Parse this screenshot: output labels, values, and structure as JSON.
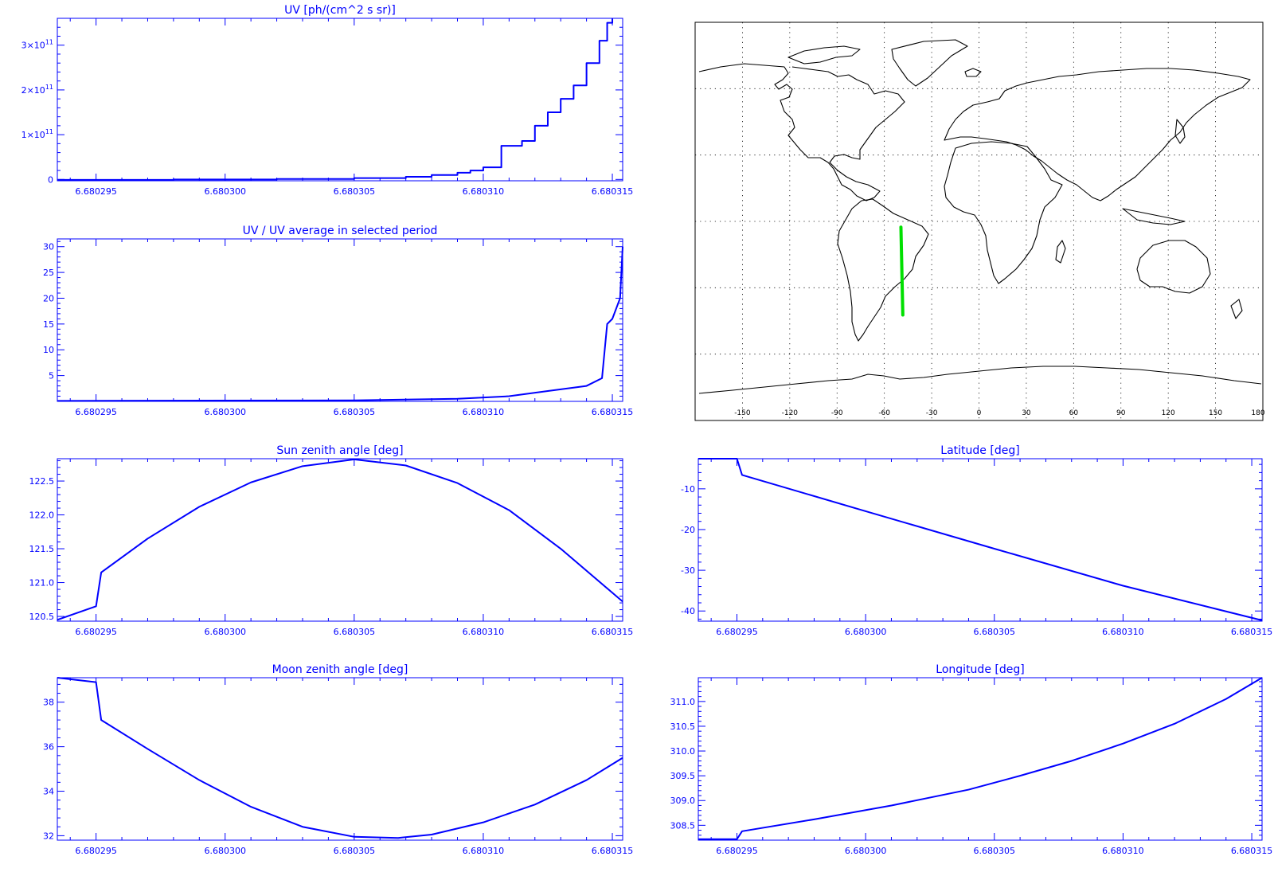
{
  "x_ticks": [
    "6.680295",
    "6.680300",
    "6.680305",
    "6.680310",
    "6.680315"
  ],
  "colors": {
    "plot": "#0000ff",
    "map": "#000000",
    "track": "#00e000",
    "bg": "#ffffff"
  },
  "chart_data": [
    {
      "id": "uv",
      "type": "line",
      "title": "UV [ph/(cm^2 s sr)]",
      "ylabel": "UV [ph/(cm^2 s sr)]",
      "xlim": [
        6.6802935,
        6.6803154
      ],
      "ylim": [
        -3000000000.0,
        360000000000.0
      ],
      "yticks": [
        0,
        100000000000.0,
        200000000000.0,
        300000000000.0
      ],
      "ytick_labels": [
        {
          "base": "0",
          "exp": ""
        },
        {
          "base": "1×10",
          "exp": "11"
        },
        {
          "base": "2×10",
          "exp": "11"
        },
        {
          "base": "3×10",
          "exp": "11"
        }
      ],
      "style": "step",
      "series": [
        {
          "x": [
            6.6802935,
            6.680298,
            6.680302,
            6.680305,
            6.680307,
            6.680308,
            6.680309,
            6.6803095,
            6.68031,
            6.6803107,
            6.6803115,
            6.680312,
            6.6803125,
            6.680313,
            6.6803135,
            6.680314,
            6.6803145,
            6.6803148,
            6.680315
          ],
          "y": [
            -1000000000.0,
            0,
            1000000000.0,
            3000000000.0,
            6000000000.0,
            10000000000.0,
            15000000000.0,
            20000000000.0,
            27000000000.0,
            75000000000.0,
            86000000000.0,
            120000000000.0,
            150000000000.0,
            180000000000.0,
            210000000000.0,
            260000000000.0,
            310000000000.0,
            350000000000.0,
            360000000000.0
          ]
        }
      ]
    },
    {
      "id": "uv_ratio",
      "type": "line",
      "title": "UV / UV average in selected period",
      "ylabel": "UV / UV average in selected period",
      "xlim": [
        6.6802935,
        6.6803154
      ],
      "ylim": [
        0,
        31.5
      ],
      "yticks": [
        5,
        10,
        15,
        20,
        25,
        30
      ],
      "ytick_labels": [
        "5",
        "10",
        "15",
        "20",
        "25",
        "30"
      ],
      "series": [
        {
          "x": [
            6.6802935,
            6.680305,
            6.680309,
            6.680311,
            6.6803125,
            6.680314,
            6.6803146,
            6.6803148,
            6.680315,
            6.6803153,
            6.6803154
          ],
          "y": [
            0.1,
            0.2,
            0.5,
            1.0,
            2.0,
            3.0,
            4.5,
            15,
            16,
            20,
            30
          ]
        }
      ]
    },
    {
      "id": "sun",
      "type": "line",
      "title": "Sun zenith angle [deg]",
      "ylabel": "Sun zenith angle [deg]",
      "xlim": [
        6.6802935,
        6.6803154
      ],
      "ylim": [
        120.43,
        122.83
      ],
      "yticks": [
        120.5,
        121.0,
        121.5,
        122.0,
        122.5
      ],
      "ytick_labels": [
        "120.5",
        "121.0",
        "121.5",
        "122.0",
        "122.5"
      ],
      "series": [
        {
          "x": [
            6.6802935,
            6.680295,
            6.6802952,
            6.680297,
            6.680299,
            6.680301,
            6.680303,
            6.680305,
            6.680307,
            6.680309,
            6.680311,
            6.680313,
            6.6803154
          ],
          "y": [
            120.45,
            120.65,
            121.15,
            121.65,
            122.12,
            122.48,
            122.72,
            122.82,
            122.73,
            122.47,
            122.07,
            121.5,
            120.72
          ]
        }
      ]
    },
    {
      "id": "moon",
      "type": "line",
      "title": "Moon zenith angle [deg]",
      "ylabel": "Moon zenith angle [deg]",
      "xlim": [
        6.6802935,
        6.6803154
      ],
      "ylim": [
        31.8,
        39.1
      ],
      "yticks": [
        32,
        34,
        36,
        38
      ],
      "ytick_labels": [
        "32",
        "34",
        "36",
        "38"
      ],
      "series": [
        {
          "x": [
            6.6802935,
            6.680295,
            6.6802952,
            6.680297,
            6.680299,
            6.680301,
            6.680303,
            6.680305,
            6.6803067,
            6.680308,
            6.68031,
            6.680312,
            6.680314,
            6.6803154
          ],
          "y": [
            39.1,
            38.9,
            37.2,
            35.9,
            34.5,
            33.3,
            32.4,
            31.95,
            31.9,
            32.05,
            32.6,
            33.4,
            34.5,
            35.5
          ]
        }
      ]
    },
    {
      "id": "lat",
      "type": "line",
      "title": "Latitude [deg]",
      "ylabel": "Latitude [deg]",
      "xlim": [
        6.6802935,
        6.6803154
      ],
      "ylim": [
        -42.5,
        -2.6
      ],
      "yticks": [
        -40,
        -30,
        -20,
        -10
      ],
      "ytick_labels": [
        "-40",
        "-30",
        "-20",
        "-10"
      ],
      "series": [
        {
          "x": [
            6.6802935,
            6.680295,
            6.6802952,
            6.6803,
            6.680305,
            6.68031,
            6.6803154
          ],
          "y": [
            -2.6,
            -2.6,
            -6.6,
            -15.5,
            -24.7,
            -33.8,
            -42.3
          ]
        }
      ]
    },
    {
      "id": "lon",
      "type": "line",
      "title": "Longitude [deg]",
      "ylabel": "Longitude [deg]",
      "xlim": [
        6.6802935,
        6.6803154
      ],
      "ylim": [
        308.2,
        311.48
      ],
      "yticks": [
        308.5,
        309.0,
        309.5,
        310.0,
        310.5,
        311.0
      ],
      "ytick_labels": [
        "308.5",
        "309.0",
        "309.5",
        "310.0",
        "310.5",
        "311.0"
      ],
      "series": [
        {
          "x": [
            6.6802935,
            6.680295,
            6.6802952,
            6.680298,
            6.680301,
            6.680304,
            6.680306,
            6.680308,
            6.68031,
            6.680312,
            6.680314,
            6.6803154
          ],
          "y": [
            308.22,
            308.22,
            308.38,
            308.62,
            308.9,
            309.22,
            309.5,
            309.8,
            310.15,
            310.55,
            311.05,
            311.48
          ]
        }
      ]
    }
  ],
  "map": {
    "x_ticks": [
      "-150",
      "-120",
      "-90",
      "-60",
      "-30",
      "0",
      "30",
      "60",
      "90",
      "120",
      "150",
      "180"
    ],
    "lon_range": [
      -180,
      180
    ],
    "lat_range": [
      -90,
      90
    ],
    "track": {
      "lon": [
        -49.5,
        -48.3
      ],
      "lat": [
        -2.6,
        -42.3
      ]
    }
  }
}
